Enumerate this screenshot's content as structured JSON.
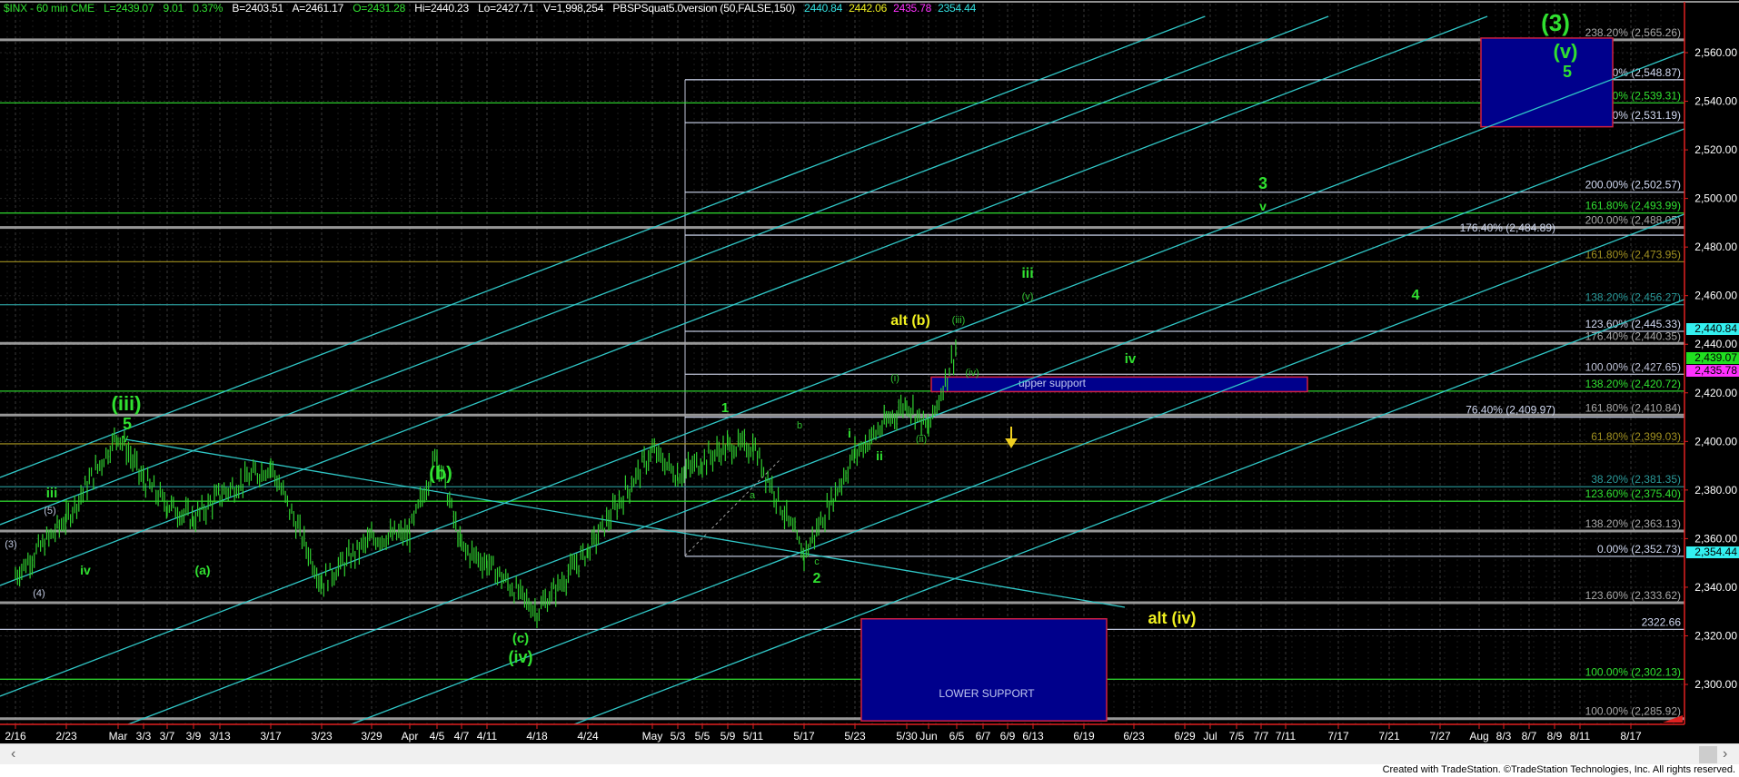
{
  "header": {
    "symbol": "$INX - 60 min CME",
    "last": "L=2439.07",
    "change": "9.01",
    "change_pct": "0.37%",
    "bid": "B=2403.51",
    "ask": "A=2461.17",
    "open": "O=2431.28",
    "high": "Hi=2440.23",
    "low": "Lo=2427.71",
    "volume": "V=1,998,254",
    "indicator": "PBSPSquat5.0version (50,FALSE,150)",
    "ind_values": [
      {
        "text": "2440.84",
        "color": "#33e0e0"
      },
      {
        "text": "2442.06",
        "color": "#f0f020"
      },
      {
        "text": "2435.78",
        "color": "#ff30ff"
      },
      {
        "text": "2354.44",
        "color": "#33e0e0"
      }
    ]
  },
  "chart_data": {
    "type": "bar",
    "title": "$INX - 60 min",
    "ylim": [
      2280,
      2580
    ],
    "y_ticks": [
      "2,560.00",
      "2,540.00",
      "2,520.00",
      "2,500.00",
      "2,480.00",
      "2,460.00",
      "2,440.00",
      "2,420.00",
      "2,400.00",
      "2,380.00",
      "2,360.00",
      "2,340.00",
      "2,320.00",
      "2,300.00"
    ],
    "y_tick_values": [
      2560,
      2540,
      2520,
      2500,
      2480,
      2460,
      2440,
      2420,
      2400,
      2380,
      2360,
      2340,
      2320,
      2300
    ],
    "x_ticks": [
      "2/16",
      "2/23",
      "Mar",
      "3/3",
      "3/7",
      "3/9",
      "3/13",
      "3/17",
      "3/23",
      "3/29",
      "Apr",
      "4/5",
      "4/7",
      "4/11",
      "4/18",
      "4/24",
      "May",
      "5/3",
      "5/5",
      "5/9",
      "5/11",
      "5/17",
      "5/23",
      "5/30",
      "Jun",
      "6/5",
      "6/7",
      "6/9",
      "6/13",
      "6/19",
      "6/23",
      "6/29",
      "Jul",
      "7/5",
      "7/7",
      "7/11",
      "7/17",
      "7/21",
      "7/27",
      "Aug",
      "8/3",
      "8/7",
      "8/9",
      "8/11",
      "8/17"
    ],
    "grid": true,
    "price_path": [
      {
        "date": "2/16",
        "price": 2345
      },
      {
        "date": "2/23",
        "price": 2368
      },
      {
        "date": "Mar",
        "price": 2403
      },
      {
        "date": "3/3",
        "price": 2384
      },
      {
        "date": "3/7",
        "price": 2374
      },
      {
        "date": "3/9",
        "price": 2368
      },
      {
        "date": "3/13",
        "price": 2378
      },
      {
        "date": "3/17",
        "price": 2390
      },
      {
        "date": "3/23",
        "price": 2342
      },
      {
        "date": "3/29",
        "price": 2360
      },
      {
        "date": "Apr",
        "price": 2362
      },
      {
        "date": "4/5",
        "price": 2395
      },
      {
        "date": "4/7",
        "price": 2356
      },
      {
        "date": "4/11",
        "price": 2350
      },
      {
        "date": "4/18",
        "price": 2330
      },
      {
        "date": "4/24",
        "price": 2355
      },
      {
        "date": "May",
        "price": 2396
      },
      {
        "date": "5/3",
        "price": 2386
      },
      {
        "date": "5/5",
        "price": 2392
      },
      {
        "date": "5/9",
        "price": 2398
      },
      {
        "date": "5/11",
        "price": 2398
      },
      {
        "date": "5/17",
        "price": 2353
      },
      {
        "date": "5/23",
        "price": 2395
      },
      {
        "date": "5/30",
        "price": 2416
      },
      {
        "date": "Jun",
        "price": 2405
      },
      {
        "date": "6/5",
        "price": 2439.07
      }
    ],
    "fib_levels": [
      {
        "label": "238.20% (2,565.26)",
        "price": 2565.26,
        "color": "#a8a8a8"
      },
      {
        "label": "261.80% (2,548.87)",
        "price": 2548.87,
        "color": "#d0d8f0"
      },
      {
        "label": "176.40% (2,539.31)",
        "price": 2539.31,
        "color": "#30e030"
      },
      {
        "label": "238.20% (2,531.19)",
        "price": 2531.19,
        "color": "#d0d8f0"
      },
      {
        "label": "200.00% (2,502.57)",
        "price": 2502.57,
        "color": "#d0d8f0"
      },
      {
        "label": "161.80% (2,493.99)",
        "price": 2493.99,
        "color": "#30e030"
      },
      {
        "label": "200.00% (2,488.05)",
        "price": 2488.05,
        "color": "#a8a8a8"
      },
      {
        "label": "176.40% (2,484.89)",
        "price": 2484.89,
        "color": "#d0d8f0"
      },
      {
        "label": "161.80% (2,473.95)",
        "price": 2473.95,
        "color": "#a09020"
      },
      {
        "label": "138.20% (2,456.27)",
        "price": 2456.27,
        "color": "#2a9a9a"
      },
      {
        "label": "123.60% (2,445.33)",
        "price": 2445.33,
        "color": "#d0d8f0"
      },
      {
        "label": "176.40% (2,440.35)",
        "price": 2440.35,
        "color": "#a8a8a8"
      },
      {
        "label": "100.00% (2,427.65)",
        "price": 2427.65,
        "color": "#c0c4d8"
      },
      {
        "label": "138.20% (2,420.72)",
        "price": 2420.72,
        "color": "#30e030"
      },
      {
        "label": "161.80% (2,410.84)",
        "price": 2410.84,
        "color": "#a8a8a8"
      },
      {
        "label": "76.40% (2,409.97)",
        "price": 2409.97,
        "color": "#d0d8f0"
      },
      {
        "label": "61.80% (2,399.03)",
        "price": 2399.03,
        "color": "#a09020"
      },
      {
        "label": "38.20% (2,381.35)",
        "price": 2381.35,
        "color": "#2a9a9a"
      },
      {
        "label": "123.60% (2,375.40)",
        "price": 2375.4,
        "color": "#30e030"
      },
      {
        "label": "138.20% (2,363.13)",
        "price": 2363.13,
        "color": "#a8a8a8"
      },
      {
        "label": "0.00% (2,352.73)",
        "price": 2352.73,
        "color": "#d0d8f0"
      },
      {
        "label": "123.60% (2,333.62)",
        "price": 2333.62,
        "color": "#a8a8a8"
      },
      {
        "label": "2322.66",
        "price": 2322.66,
        "color": "#d0d8f0"
      },
      {
        "label": "100.00% (2,302.13)",
        "price": 2302.13,
        "color": "#30e030"
      },
      {
        "label": "100.00% (2,285.92)",
        "price": 2285.92,
        "color": "#a8a8a8"
      }
    ],
    "zones": [
      {
        "label": "",
        "top": 2566,
        "bottom": 2529.5
      },
      {
        "label": "upper support",
        "top": 2426.5,
        "bottom": 2420.5
      },
      {
        "label": "LOWER SUPPORT",
        "top": 2327,
        "bottom": 2285
      }
    ],
    "wave_labels": [
      {
        "text": "(3)",
        "color": "#30e030"
      },
      {
        "text": "(v)",
        "color": "#30e030"
      },
      {
        "text": "5",
        "color": "#30e030"
      },
      {
        "text": "3",
        "color": "#30e030"
      },
      {
        "text": "v",
        "color": "#30e030"
      },
      {
        "text": "iii",
        "color": "#30e030"
      },
      {
        "text": "(v)",
        "color": "#30c030"
      },
      {
        "text": "alt (b)",
        "color": "#f0f020"
      },
      {
        "text": "(iii)",
        "color": "#30c030"
      },
      {
        "text": "4",
        "color": "#30e030"
      },
      {
        "text": "iv",
        "color": "#30e030"
      },
      {
        "text": "(iv)",
        "color": "#30c030"
      },
      {
        "text": "(i)",
        "color": "#30c030"
      },
      {
        "text": "(ii)",
        "color": "#30c030"
      },
      {
        "text": "i",
        "color": "#30e030"
      },
      {
        "text": "ii",
        "color": "#30e030"
      },
      {
        "text": "b",
        "color": "#30c030"
      },
      {
        "text": "1",
        "color": "#30e030"
      },
      {
        "text": "a",
        "color": "#30c030"
      },
      {
        "text": "c",
        "color": "#30c030"
      },
      {
        "text": "2",
        "color": "#30e030"
      },
      {
        "text": "alt (iv)",
        "color": "#f0f020"
      },
      {
        "text": "(iii)",
        "color": "#30e030"
      },
      {
        "text": "5",
        "color": "#30e030"
      },
      {
        "text": "v",
        "color": "#30e030"
      },
      {
        "text": "iii",
        "color": "#30e030"
      },
      {
        "text": "(5)",
        "color": "#c0c8e0"
      },
      {
        "text": "(3)",
        "color": "#c0c8e0"
      },
      {
        "text": "(4)",
        "color": "#c0c8e0"
      },
      {
        "text": "iv",
        "color": "#30e030"
      },
      {
        "text": "(a)",
        "color": "#30e030"
      },
      {
        "text": "(b)",
        "color": "#30e030"
      },
      {
        "text": "(c)",
        "color": "#30e030"
      },
      {
        "text": "(iv)",
        "color": "#30e030"
      }
    ],
    "price_markers": [
      {
        "text": "2,440.84",
        "price": 2440.84,
        "color": "#33f0f0"
      },
      {
        "text": "2,435.78",
        "price": 2435.78,
        "color": "#ff30ff"
      },
      {
        "text": "2,439.07",
        "price": 2439.07,
        "color": "#20e020"
      },
      {
        "text": "2,354.44",
        "price": 2354.44,
        "color": "#33f0f0"
      }
    ],
    "colors": {
      "bars": "#30d030",
      "channel": "#30c8c8",
      "axis": "#e02020",
      "zone_fill": "#00008c",
      "zone_border": "#d02040"
    }
  },
  "footer": {
    "text": "Created with TradeStation. ©TradeStation Technologies, Inc. All rights reserved."
  },
  "scrollbar": {
    "left_icon": "‹",
    "right_icon": "›"
  }
}
